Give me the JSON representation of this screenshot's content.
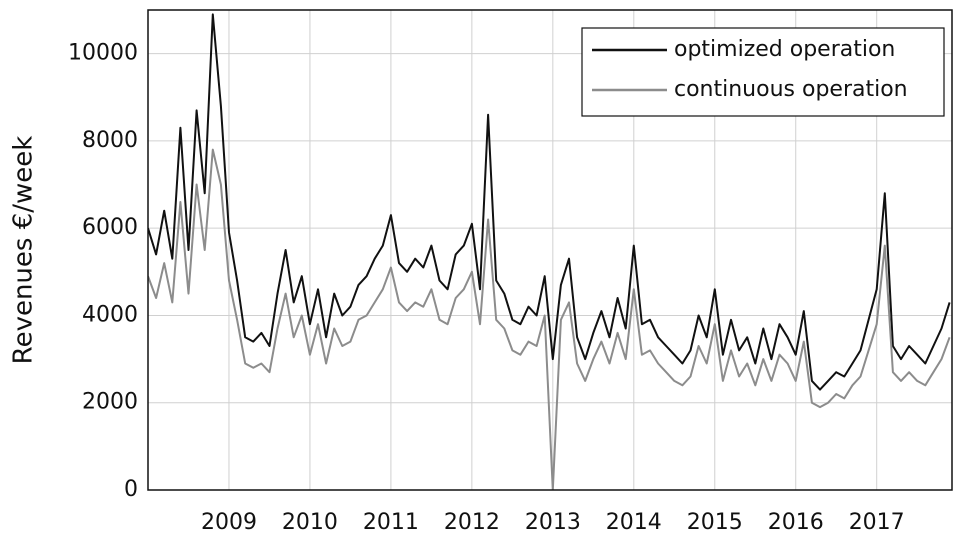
{
  "chart_data": {
    "type": "line",
    "ylabel": "Revenues €/week",
    "x": [
      2008,
      2008.1,
      2008.2,
      2008.3,
      2008.4,
      2008.5,
      2008.6,
      2008.7,
      2008.8,
      2008.9,
      2009,
      2009.1,
      2009.2,
      2009.3,
      2009.4,
      2009.5,
      2009.6,
      2009.7,
      2009.8,
      2009.9,
      2010,
      2010.1,
      2010.2,
      2010.3,
      2010.4,
      2010.5,
      2010.6,
      2010.7,
      2010.8,
      2010.9,
      2011,
      2011.1,
      2011.2,
      2011.3,
      2011.4,
      2011.5,
      2011.6,
      2011.7,
      2011.8,
      2011.9,
      2012,
      2012.1,
      2012.2,
      2012.3,
      2012.4,
      2012.5,
      2012.6,
      2012.7,
      2012.8,
      2012.9,
      2013,
      2013.1,
      2013.2,
      2013.3,
      2013.4,
      2013.5,
      2013.6,
      2013.7,
      2013.8,
      2013.9,
      2014,
      2014.1,
      2014.2,
      2014.3,
      2014.4,
      2014.5,
      2014.6,
      2014.7,
      2014.8,
      2014.9,
      2015,
      2015.1,
      2015.2,
      2015.3,
      2015.4,
      2015.5,
      2015.6,
      2015.7,
      2015.8,
      2015.9,
      2016,
      2016.1,
      2016.2,
      2016.3,
      2016.4,
      2016.5,
      2016.6,
      2016.7,
      2016.8,
      2016.9,
      2017,
      2017.1,
      2017.2,
      2017.3,
      2017.4,
      2017.5,
      2017.6,
      2017.7,
      2017.8,
      2017.9
    ],
    "series": [
      {
        "name": "optimized operation",
        "color": "#111111",
        "values": [
          6000,
          5400,
          6400,
          5300,
          8300,
          5500,
          8700,
          6800,
          10900,
          8800,
          5900,
          4800,
          3500,
          3400,
          3600,
          3300,
          4500,
          5500,
          4300,
          4900,
          3800,
          4600,
          3500,
          4500,
          4000,
          4200,
          4700,
          4900,
          5300,
          5600,
          6300,
          5200,
          5000,
          5300,
          5100,
          5600,
          4800,
          4600,
          5400,
          5600,
          6100,
          4600,
          8600,
          4800,
          4500,
          3900,
          3800,
          4200,
          4000,
          4900,
          3000,
          4700,
          5300,
          3500,
          3000,
          3600,
          4100,
          3500,
          4400,
          3700,
          5600,
          3800,
          3900,
          3500,
          3300,
          3100,
          2900,
          3200,
          4000,
          3500,
          4600,
          3100,
          3900,
          3200,
          3500,
          2900,
          3700,
          3000,
          3800,
          3500,
          3100,
          4100,
          2500,
          2300,
          2500,
          2700,
          2600,
          2900,
          3200,
          3900,
          4600,
          6800,
          3300,
          3000,
          3300,
          3100,
          2900,
          3300,
          3700,
          4300
        ]
      },
      {
        "name": "continuous operation",
        "color": "#8c8c8c",
        "values": [
          4900,
          4400,
          5200,
          4300,
          6600,
          4500,
          7000,
          5500,
          7800,
          7000,
          4800,
          3900,
          2900,
          2800,
          2900,
          2700,
          3700,
          4500,
          3500,
          4000,
          3100,
          3800,
          2900,
          3700,
          3300,
          3400,
          3900,
          4000,
          4300,
          4600,
          5100,
          4300,
          4100,
          4300,
          4200,
          4600,
          3900,
          3800,
          4400,
          4600,
          5000,
          3800,
          6200,
          3900,
          3700,
          3200,
          3100,
          3400,
          3300,
          4000,
          0,
          3900,
          4300,
          2900,
          2500,
          3000,
          3400,
          2900,
          3600,
          3000,
          4600,
          3100,
          3200,
          2900,
          2700,
          2500,
          2400,
          2600,
          3300,
          2900,
          3800,
          2500,
          3200,
          2600,
          2900,
          2400,
          3000,
          2500,
          3100,
          2900,
          2500,
          3400,
          2000,
          1900,
          2000,
          2200,
          2100,
          2400,
          2600,
          3200,
          3800,
          5600,
          2700,
          2500,
          2700,
          2500,
          2400,
          2700,
          3000,
          3500
        ]
      }
    ],
    "xlim": [
      2008,
      2017.93
    ],
    "xticks": [
      2009,
      2010,
      2011,
      2012,
      2013,
      2014,
      2015,
      2016,
      2017
    ],
    "ylim": [
      0,
      11000
    ],
    "yticks": [
      0,
      2000,
      4000,
      6000,
      8000,
      10000
    ],
    "grid": true,
    "legend": "upper right"
  }
}
